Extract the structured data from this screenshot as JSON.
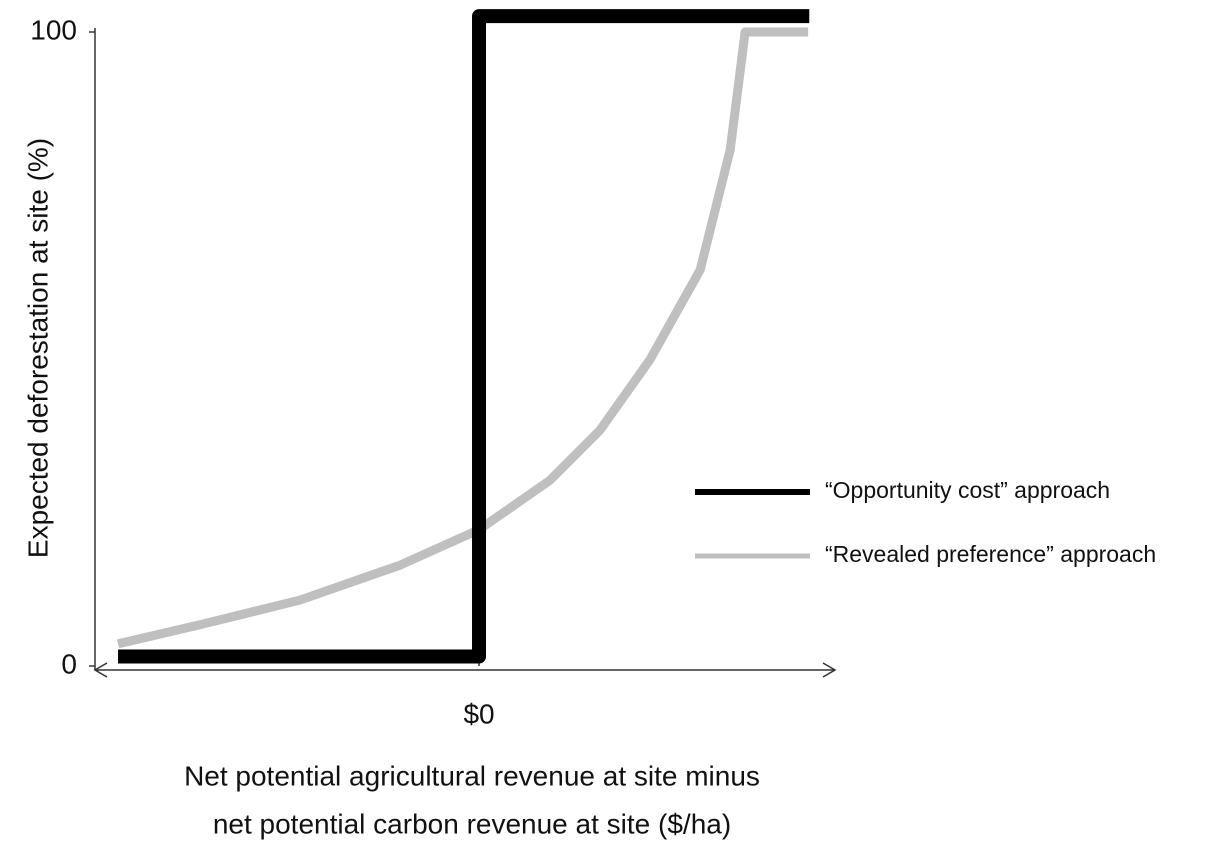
{
  "chart_data": {
    "type": "line",
    "ylabel": "Expected deforestation at site (%)",
    "xlabel": [
      "Net potential agricultural revenue at site minus",
      "net potential carbon revenue at site ($/ha)"
    ],
    "xlim": [
      -100,
      92.7
    ],
    "ylim": [
      0,
      100
    ],
    "xticks": [
      {
        "value": 0,
        "label": "$0"
      }
    ],
    "yticks": [
      0,
      100
    ],
    "grid": false,
    "legend": "right",
    "series": [
      {
        "name": "“Opportunity cost” approach",
        "color": "#000000",
        "x": [
          -94,
          0,
          0,
          86
        ],
        "values": [
          1.5,
          1.5,
          102.5,
          102.5
        ]
      },
      {
        "name": "“Revealed preference” approach",
        "color": "#bfbfbf",
        "x": [
          -94,
          -72.7,
          -46.6,
          -20.6,
          0,
          18.5,
          31.5,
          44.5,
          57.6,
          65.4,
          69.3,
          85.7
        ],
        "values": [
          3.5,
          6.5,
          10.4,
          15.9,
          21.5,
          29.3,
          37.2,
          48.3,
          62.5,
          81.4,
          100,
          100
        ]
      }
    ]
  }
}
